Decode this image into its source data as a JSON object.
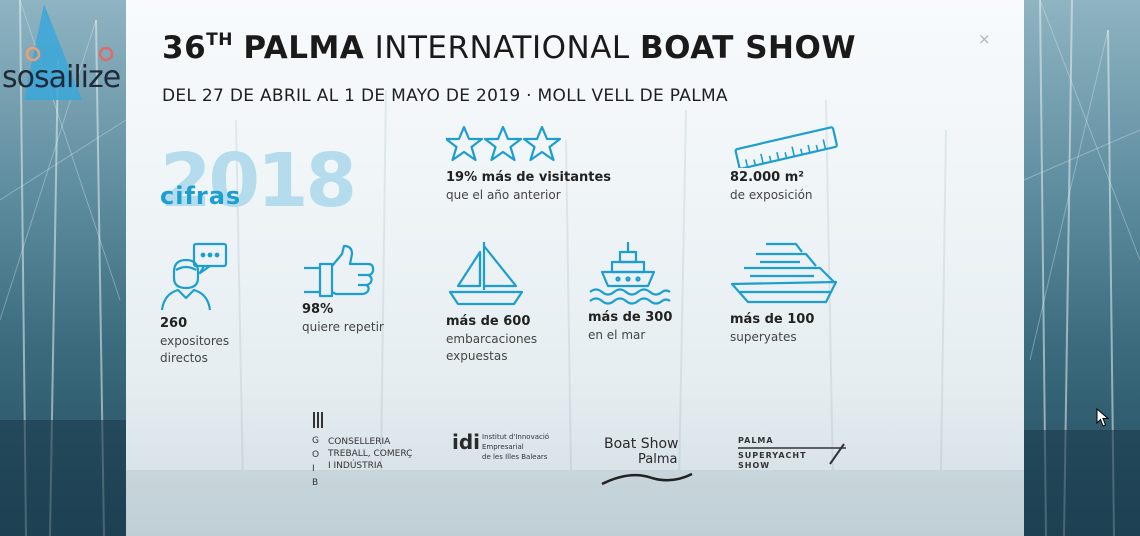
{
  "brand": {
    "name": "sosailize"
  },
  "header": {
    "title_num": "36",
    "title_sup": "TH",
    "title_bold1": "PALMA",
    "title_light": "INTERNATIONAL",
    "title_bold2": "BOAT SHOW",
    "subtitle": "DEL 27 DE ABRIL AL 1 DE MAYO DE 2019 · MOLL VELL DE PALMA",
    "close": "×"
  },
  "summary": {
    "year": "2018",
    "label": "cifras"
  },
  "stats": {
    "visitors": {
      "value": "19% más de visitantes",
      "label": "que el año anterior"
    },
    "area": {
      "value": "82.000 m²",
      "label": "de exposición"
    },
    "exhibitors": {
      "value": "260",
      "line1": "expositores",
      "line2": "directos"
    },
    "repeat": {
      "value": "98%",
      "label": "quiere repetir"
    },
    "boats": {
      "value": "más de 600",
      "line1": "embarcaciones",
      "line2": "expuestas"
    },
    "sea": {
      "value": "más de 300",
      "label": "en el mar"
    },
    "yachts": {
      "value": "más de 100",
      "label": "superyates"
    }
  },
  "sponsors": {
    "govern": {
      "letters": [
        "G",
        "O",
        "I",
        "B"
      ],
      "lines": [
        "CONSELLERIA",
        "TREBALL, COMERÇ",
        "I INDÚSTRIA"
      ]
    },
    "idi": {
      "mark": "idi",
      "lines": [
        "Institut d'Innovació",
        "Empresarial",
        "de les Illes Balears"
      ]
    },
    "boatshow": {
      "line1": "Boat Show",
      "line2": "Palma"
    },
    "superyacht": {
      "line1": "PALMA",
      "line2": "SUPERYACHT",
      "line3": "SHOW"
    }
  },
  "colors": {
    "accent": "#1d9ed0",
    "accent_light": "#b4dced",
    "text": "#1a1a1a"
  },
  "icons": [
    "close-icon",
    "stars-icon",
    "ruler-icon",
    "person-chat-icon",
    "thumbs-up-icon",
    "sailboat-icon",
    "ship-waves-icon",
    "superyacht-icon",
    "mouse-cursor-icon"
  ]
}
